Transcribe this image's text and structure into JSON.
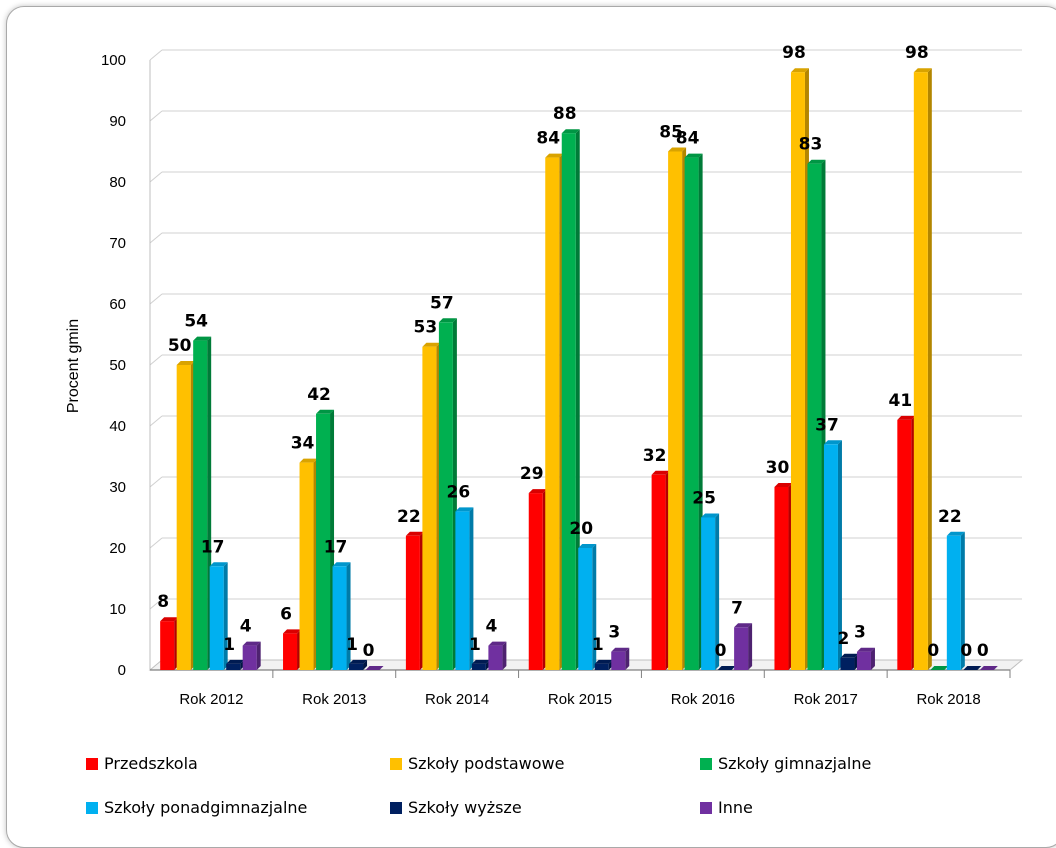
{
  "chart_data": {
    "type": "bar",
    "categories": [
      "Rok 2012",
      "Rok 2013",
      "Rok 2014",
      "Rok 2015",
      "Rok 2016",
      "Rok 2017",
      "Rok 2018"
    ],
    "series": [
      {
        "name": "Przedszkola",
        "color": "#ff0000",
        "values": [
          8,
          6,
          22,
          29,
          32,
          30,
          41
        ]
      },
      {
        "name": "Szkoły podstawowe",
        "color": "#ffc000",
        "values": [
          50,
          34,
          53,
          84,
          85,
          98,
          98
        ]
      },
      {
        "name": "Szkoły gimnazjalne",
        "color": "#00b050",
        "values": [
          54,
          42,
          57,
          88,
          84,
          83,
          0
        ]
      },
      {
        "name": "Szkoły ponadgimnazjalne",
        "color": "#00b0f0",
        "values": [
          17,
          17,
          26,
          20,
          25,
          37,
          22
        ]
      },
      {
        "name": "Szkoły wyższe",
        "color": "#002060",
        "values": [
          1,
          1,
          1,
          1,
          0,
          2,
          0
        ]
      },
      {
        "name": "Inne",
        "color": "#7030a0",
        "values": [
          4,
          0,
          4,
          3,
          7,
          3,
          0
        ]
      }
    ],
    "ylabel": "Procent gmin",
    "xlabel": "",
    "ylim": [
      0,
      100
    ],
    "yticks": [
      0,
      10,
      20,
      30,
      40,
      50,
      60,
      70,
      80,
      90,
      100
    ],
    "grid": true,
    "legend_position": "bottom",
    "style": "3d-clustered"
  }
}
